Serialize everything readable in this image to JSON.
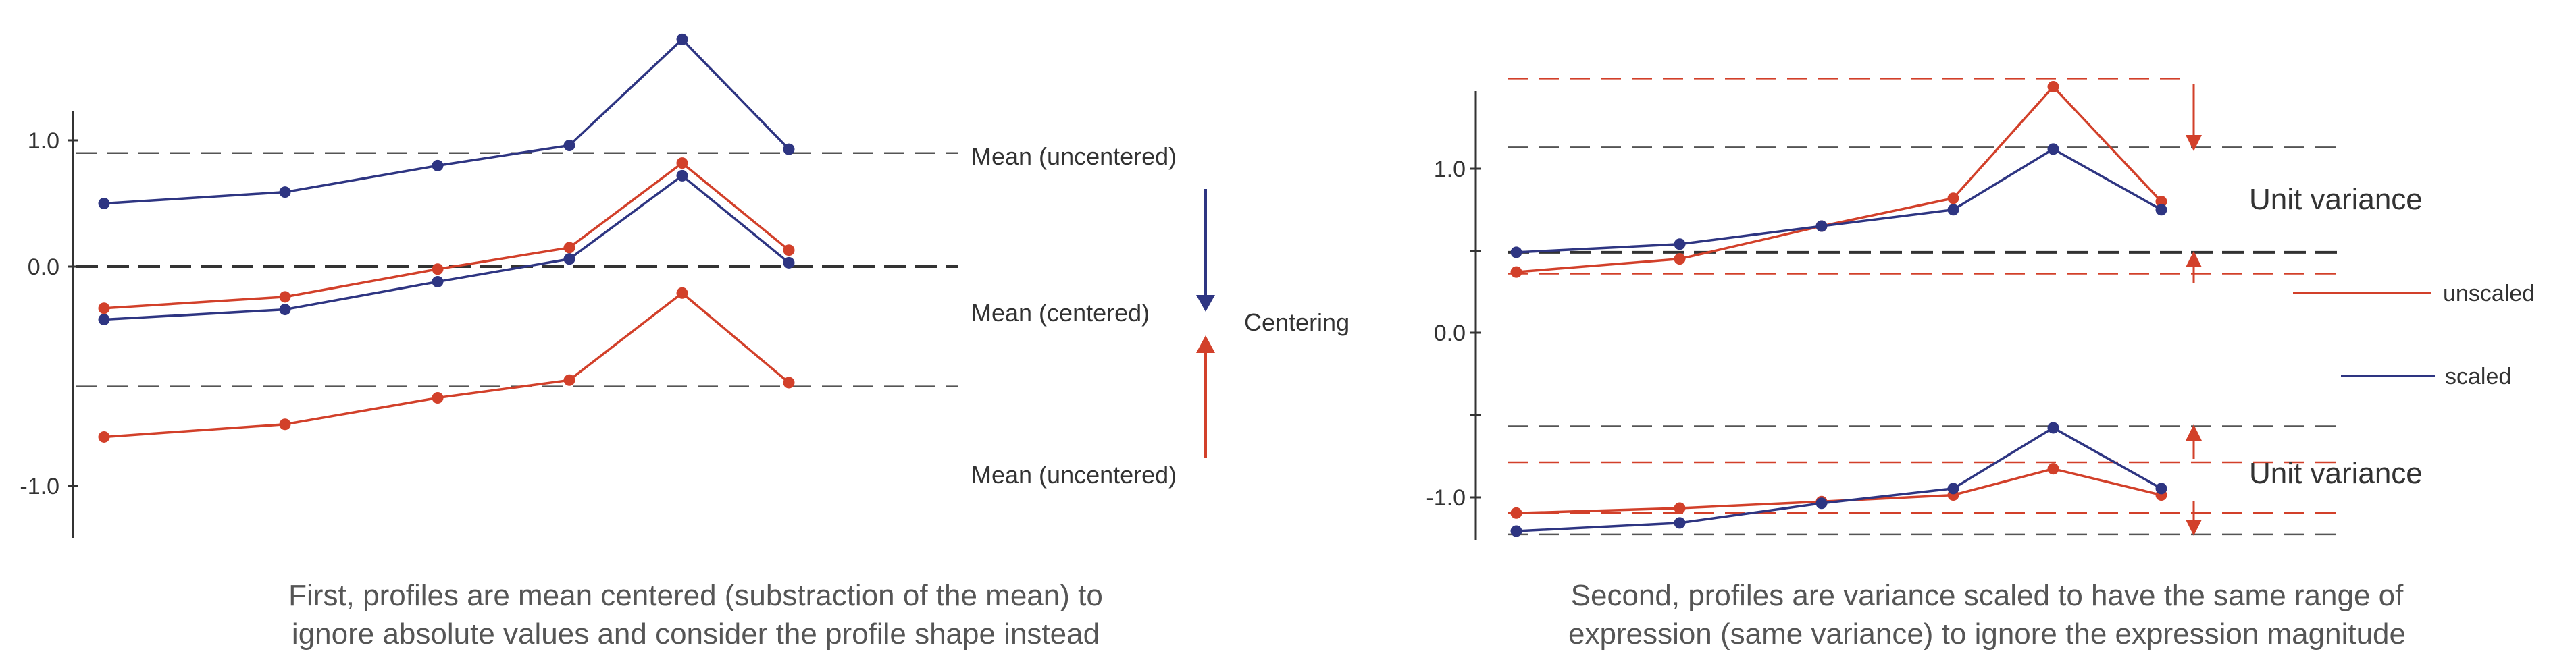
{
  "colors": {
    "blue": "#2e3582",
    "red": "#d2402a",
    "dash": "#555555",
    "axis": "#333333",
    "text": "#333333",
    "caption": "#555555"
  },
  "left": {
    "y_ticks": [
      "1.0",
      "0.0",
      "-1.0"
    ],
    "x": [
      1,
      2,
      3,
      4,
      5,
      6
    ],
    "series": [
      {
        "color": "blue",
        "values": [
          0.5,
          0.59,
          0.8,
          0.96,
          1.8,
          0.93
        ]
      },
      {
        "color": "red",
        "values": [
          -0.33,
          -0.24,
          -0.02,
          0.15,
          0.82,
          0.13
        ]
      },
      {
        "color": "blue",
        "values": [
          -0.42,
          -0.34,
          -0.12,
          0.06,
          0.72,
          0.03
        ]
      },
      {
        "color": "red",
        "values": [
          -1.35,
          -1.25,
          -1.04,
          -0.9,
          -0.21,
          -0.92
        ]
      }
    ],
    "dashed": [
      {
        "y": 0.9,
        "label": "Mean (uncentered)",
        "heavy": false
      },
      {
        "y": 0.0,
        "label": "Mean (centered)",
        "heavy": true
      },
      {
        "y": -0.95,
        "label": "Mean (uncentered)",
        "heavy": false
      }
    ],
    "side_label": "Centering",
    "caption": [
      "First, profiles are mean centered (substraction of the mean) to",
      "ignore absolute values and consider the profile shape instead"
    ]
  },
  "right": {
    "y_ticks": [
      "1.0",
      "0.0",
      "-1.0"
    ],
    "x": [
      1,
      2,
      3,
      4,
      5,
      6
    ],
    "series": [
      {
        "color": "red",
        "values": [
          0.37,
          0.45,
          0.65,
          0.82,
          1.5,
          0.8
        ]
      },
      {
        "color": "blue",
        "values": [
          0.49,
          0.54,
          0.65,
          0.75,
          1.12,
          0.75
        ]
      },
      {
        "color": "red",
        "values": [
          -1.1,
          -1.07,
          -1.03,
          -0.99,
          -0.83,
          -0.99
        ]
      },
      {
        "color": "blue",
        "values": [
          -1.21,
          -1.16,
          -1.04,
          -0.95,
          -0.58,
          -0.95
        ]
      }
    ],
    "dashed": [
      {
        "y": 1.55,
        "color": "red",
        "heavy": false
      },
      {
        "y": 1.13,
        "color": "dash",
        "heavy": false
      },
      {
        "y": 0.49,
        "color": "dash",
        "heavy": true
      },
      {
        "y": 0.36,
        "color": "red",
        "heavy": false
      },
      {
        "y": -0.57,
        "color": "dash",
        "heavy": false
      },
      {
        "y": -0.79,
        "color": "red",
        "heavy": false
      },
      {
        "y": -1.1,
        "color": "red",
        "heavy": false
      },
      {
        "y": -1.23,
        "color": "dash",
        "heavy": false
      }
    ],
    "unit_variance_top": "Unit variance",
    "unit_variance_bottom": "Unit variance",
    "legend": [
      {
        "label": "unscaled",
        "color": "red"
      },
      {
        "label": "scaled",
        "color": "blue"
      }
    ],
    "caption": [
      "Second, profiles are variance scaled to have the same range of",
      "expression (same variance) to ignore the expression magnitude"
    ]
  }
}
